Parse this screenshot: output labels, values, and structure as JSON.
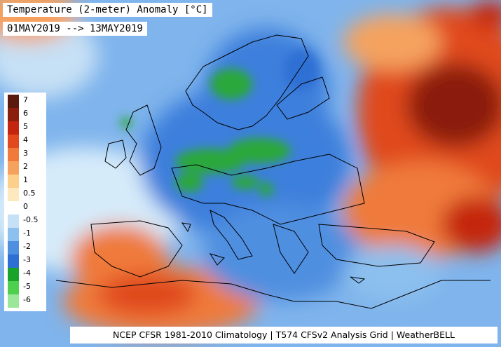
{
  "title": "Temperature (2-meter) Anomaly [°C]",
  "date_range": "01MAY2019 --> 13MAY2019",
  "footer": "NCEP CFSR 1981-2010 Climatology | T574 CFSv2 Analysis Grid | WeatherBELL",
  "legend": {
    "labels": [
      "7",
      "6",
      "5",
      "4",
      "3",
      "2",
      "1",
      "0.5",
      "0",
      "-0.5",
      "-1",
      "-2",
      "-3",
      "-4",
      "-5",
      "-6"
    ],
    "colors": [
      "#5a1a0e",
      "#8b1f0e",
      "#c4250f",
      "#e04a1e",
      "#ef7a3a",
      "#f5a25e",
      "#fcd08a",
      "#fde9bd",
      "#ffffff",
      "#c6e0f5",
      "#8cc0ee",
      "#4f8fe0",
      "#2e6fd4",
      "#1aa32a",
      "#4fcf4f",
      "#9ae79a"
    ]
  }
}
